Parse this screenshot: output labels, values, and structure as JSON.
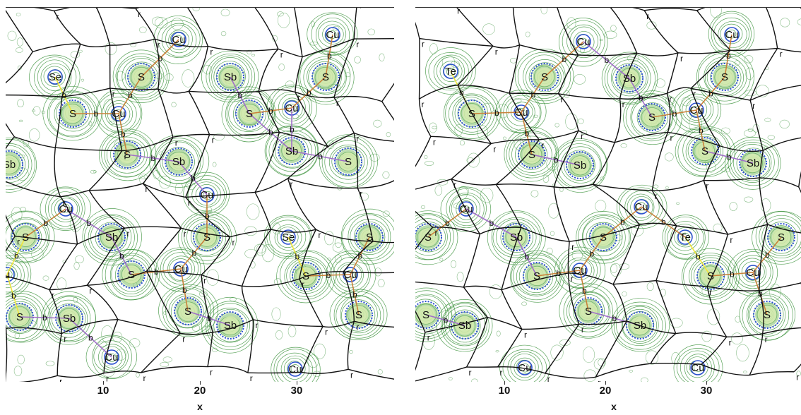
{
  "colors": {
    "contour": "#2e8b2e",
    "core_blue": "#2b4fd1",
    "basin_line": "#111111",
    "path_orange": "#c9813a",
    "path_purple": "#a070c8",
    "path_yellow": "#f0e63a"
  },
  "x_axis": {
    "label": "x",
    "ticks": [
      "10",
      "20",
      "30"
    ]
  },
  "panels": [
    {
      "atoms": [
        {
          "label": "Cu"
        },
        {
          "label": "Cu"
        },
        {
          "label": "Se"
        },
        {
          "label": "S"
        },
        {
          "label": "Sb"
        },
        {
          "label": "S"
        },
        {
          "label": "S"
        },
        {
          "label": "Cu"
        },
        {
          "label": "S"
        },
        {
          "label": "Cu"
        },
        {
          "label": "S"
        },
        {
          "label": "Sb"
        },
        {
          "label": "Sb"
        },
        {
          "label": "S"
        },
        {
          "label": "Sb"
        },
        {
          "label": "Cu"
        },
        {
          "label": "Cu"
        },
        {
          "label": "S"
        },
        {
          "label": "Sb"
        },
        {
          "label": "S"
        },
        {
          "label": "Se"
        },
        {
          "label": "S"
        },
        {
          "label": "S"
        },
        {
          "label": "Cu"
        },
        {
          "label": "S"
        },
        {
          "label": "Cu"
        },
        {
          "label": "u"
        },
        {
          "label": "S"
        },
        {
          "label": "Sb"
        },
        {
          "label": "S"
        },
        {
          "label": "Sb"
        },
        {
          "label": "S"
        },
        {
          "label": "Cu"
        },
        {
          "label": "Cu"
        }
      ]
    },
    {
      "atoms": [
        {
          "label": "Cu"
        },
        {
          "label": "Cu"
        },
        {
          "label": "Te"
        },
        {
          "label": "S"
        },
        {
          "label": "Sb"
        },
        {
          "label": "S"
        },
        {
          "label": "S"
        },
        {
          "label": "Cu"
        },
        {
          "label": "S"
        },
        {
          "label": "Cu"
        },
        {
          "label": "S"
        },
        {
          "label": "Sb"
        },
        {
          "label": "S"
        },
        {
          "label": "Sb"
        },
        {
          "label": "Cu"
        },
        {
          "label": "Cu"
        },
        {
          "label": "S"
        },
        {
          "label": "Sb"
        },
        {
          "label": "S"
        },
        {
          "label": "Te"
        },
        {
          "label": "S"
        },
        {
          "label": "S"
        },
        {
          "label": "Cu"
        },
        {
          "label": "S"
        },
        {
          "label": "Cu"
        },
        {
          "label": "S"
        },
        {
          "label": "Sb"
        },
        {
          "label": "S"
        },
        {
          "label": "Sb"
        },
        {
          "label": "S"
        },
        {
          "label": "Cu"
        },
        {
          "label": "Cu"
        }
      ]
    }
  ],
  "cp_labels": {
    "bond": "b",
    "ring": "r"
  }
}
